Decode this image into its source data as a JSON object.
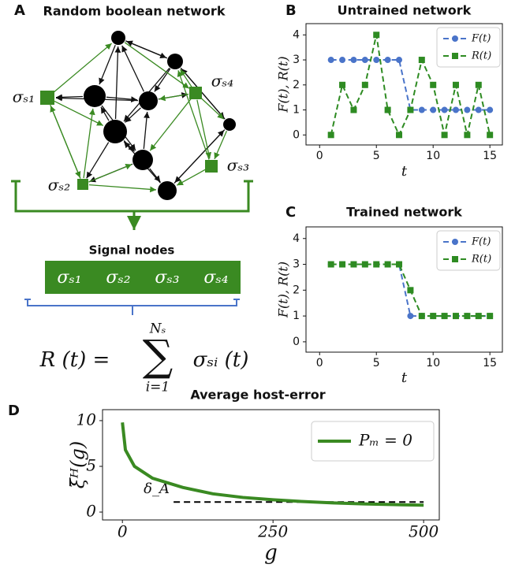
{
  "panel_labels": [
    "A",
    "B",
    "C",
    "D"
  ],
  "panel_a": {
    "title": "Random boolean network",
    "node_labels": [
      "σₛ₁",
      "σₛ₄",
      "σₛ₃",
      "σₛ₂"
    ],
    "signal_title": "Signal nodes",
    "signal_nodes": [
      "σₛ₁",
      "σₛ₂",
      "σₛ₃",
      "σₛ₄"
    ],
    "formula": {
      "lhs": "R (t) =",
      "sum": "∑",
      "upper": "Nₛ",
      "lower": "i=1",
      "term": "σₛᵢ (t)"
    }
  },
  "chart_data": [
    {
      "type": "line",
      "title": "Untrained network",
      "x_label": "t",
      "y_label": "F(t), R(t)",
      "x": [
        1,
        2,
        3,
        4,
        5,
        6,
        7,
        8,
        9,
        10,
        11,
        12,
        13,
        14,
        15
      ],
      "series": [
        {
          "name": "F(t)",
          "color": "#4a74c9",
          "marker": "circle",
          "values": [
            3,
            3,
            3,
            3,
            3,
            3,
            3,
            1,
            1,
            1,
            1,
            1,
            1,
            1,
            1
          ]
        },
        {
          "name": "R(t)",
          "color": "#2e8b22",
          "marker": "square",
          "values": [
            0,
            2,
            1,
            2,
            4,
            1,
            0,
            1,
            3,
            2,
            0,
            2,
            0,
            2,
            0
          ]
        }
      ],
      "xlim": [
        -1.2,
        16.1
      ],
      "xticks": [
        0,
        5,
        10,
        15
      ],
      "ylim": [
        -0.4,
        4.45
      ],
      "yticks": [
        0,
        1,
        2,
        3,
        4
      ],
      "legend": "upper right"
    },
    {
      "type": "line",
      "title": "Trained network",
      "x_label": "t",
      "y_label": "F(t), R(t)",
      "x": [
        1,
        2,
        3,
        4,
        5,
        6,
        7,
        8,
        9,
        10,
        11,
        12,
        13,
        14,
        15
      ],
      "series": [
        {
          "name": "F(t)",
          "color": "#4a74c9",
          "marker": "circle",
          "values": [
            3,
            3,
            3,
            3,
            3,
            3,
            3,
            1,
            1,
            1,
            1,
            1,
            1,
            1,
            1
          ]
        },
        {
          "name": "R(t)",
          "color": "#2e8b22",
          "marker": "square",
          "values": [
            3,
            3,
            3,
            3,
            3,
            3,
            3,
            2,
            1,
            1,
            1,
            1,
            1,
            1,
            1
          ]
        }
      ],
      "xlim": [
        -1.2,
        16.1
      ],
      "xticks": [
        0,
        5,
        10,
        15
      ],
      "ylim": [
        -0.4,
        4.45
      ],
      "yticks": [
        0,
        1,
        2,
        3,
        4
      ],
      "legend": "upper right"
    },
    {
      "type": "curve",
      "title": "Average host-error",
      "x_label": "g",
      "y_label": "ξ̄ᴴ(g)",
      "x": [
        0,
        5,
        20,
        50,
        100,
        150,
        200,
        250,
        300,
        350,
        400,
        450,
        500
      ],
      "series": [
        {
          "name": "Pₘ = 0",
          "color": "#3a8a22",
          "values": [
            9.8,
            6.8,
            5.0,
            3.7,
            2.7,
            2.0,
            1.6,
            1.35,
            1.15,
            1.0,
            0.9,
            0.82,
            0.75
          ]
        }
      ],
      "reference": {
        "label": "δ_A",
        "x": [
          85,
          500
        ],
        "value": 1.1
      },
      "xlim": [
        -33,
        526
      ],
      "xticks": [
        0,
        250,
        500
      ],
      "ylim": [
        -0.86,
        11.2
      ],
      "yticks": [
        0,
        5,
        10
      ],
      "legend": "upper right"
    }
  ]
}
